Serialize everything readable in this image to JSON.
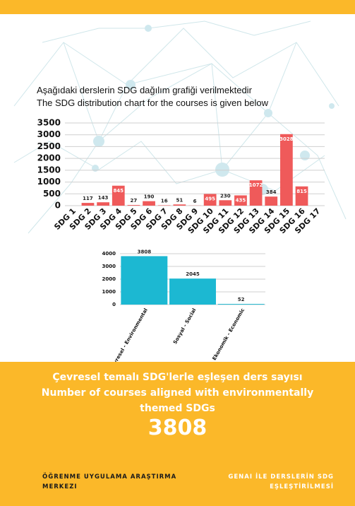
{
  "chart_data": [
    {
      "type": "bar",
      "title": "Aşağıdaki derslerin SDG dağılım grafiği verilmektedir",
      "subtitle": "The SDG distribution chart for the courses is given below",
      "categories": [
        "SDG 1",
        "SDG 2",
        "SDG 3",
        "SDG 4",
        "SDG 5",
        "SDG 6",
        "SDG 7",
        "SDG 8",
        "SDG 9",
        "SDG 10",
        "SDG 11",
        "SDG 12",
        "SDG 13",
        "SDG 14",
        "SDG 15",
        "SDG 16",
        "SDG 17"
      ],
      "values": [
        null,
        117,
        143,
        845,
        27,
        190,
        16,
        51,
        6,
        495,
        230,
        435,
        1072,
        384,
        3028,
        815,
        null
      ],
      "color": "#ef5a5a",
      "ylim": [
        0,
        3500
      ],
      "yticks": [
        0,
        500,
        1000,
        1500,
        2000,
        2500,
        3000,
        3500
      ],
      "grid": true
    },
    {
      "type": "bar",
      "categories": [
        "Çevresel - Environmental",
        "Sosyal - Social",
        "Ekonomik - Economic"
      ],
      "values": [
        3808,
        2045,
        52
      ],
      "color": "#1cb8d2",
      "ylim": [
        0,
        4000
      ],
      "yticks": [
        0,
        1000,
        2000,
        3000,
        4000
      ],
      "grid": true
    }
  ],
  "panel": {
    "line1": "Çevresel temalı SDG'lerle eşleşen ders sayısı",
    "line2": "Number of courses aligned with environmentally",
    "line3": "themed SDGs",
    "value": "3808"
  },
  "footer": {
    "left1": "ÖĞRENME UYGULAMA ARAŞTIRMA",
    "left2": "MERKEZI",
    "right1": "GENAI İLE DERSLERİN SDG",
    "right2": "EŞLEŞTİRİLMESİ"
  }
}
